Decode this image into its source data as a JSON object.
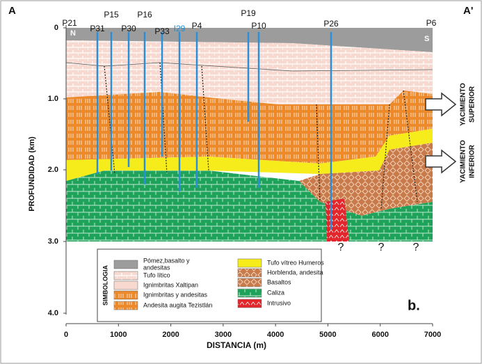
{
  "panel_label": "A",
  "panel_label_end": "A'",
  "subfigure": "b.",
  "orientation": [
    "N",
    "S"
  ],
  "y_axis": {
    "title": "PROFUNDIDAD (km)",
    "ticks": [
      "0",
      "1.0",
      "2.0",
      "3.0",
      "4.0"
    ]
  },
  "x_axis": {
    "title": "DISTANCIA (m)",
    "ticks": [
      "0",
      "1000",
      "2000",
      "3000",
      "4000",
      "5000",
      "6000",
      "7000"
    ]
  },
  "wells": [
    {
      "label": "P21",
      "color": "#111"
    },
    {
      "label": "P31",
      "color": "#111"
    },
    {
      "label": "P15",
      "color": "#111"
    },
    {
      "label": "P30",
      "color": "#111"
    },
    {
      "label": "P16",
      "color": "#111"
    },
    {
      "label": "P33",
      "color": "#111"
    },
    {
      "label": "I29",
      "color": "#1a8fd6"
    },
    {
      "label": "P4",
      "color": "#111"
    },
    {
      "label": "P19",
      "color": "#111"
    },
    {
      "label": "P10",
      "color": "#111"
    },
    {
      "label": "P26",
      "color": "#111"
    },
    {
      "label": "P6",
      "color": "#111"
    }
  ],
  "unknowns": [
    "?",
    "?",
    "?"
  ],
  "zones": [
    {
      "lines": [
        "YACIMIENTO",
        "SUPERIOR"
      ]
    },
    {
      "lines": [
        "YACIMIENTO",
        "INFERIOR"
      ]
    }
  ],
  "legend": {
    "title": "SIMBOLOGIA",
    "items": [
      {
        "lines": [
          "Pómez,basalto y",
          "andesitas"
        ]
      },
      {
        "lines": [
          "Tufo lítico"
        ]
      },
      {
        "lines": [
          "Ignimbritas Xaltipan"
        ]
      },
      {
        "lines": [
          "Ignimbritas y andesitas"
        ]
      },
      {
        "lines": [
          "Andesita augita Tezistlán"
        ]
      },
      {
        "lines": [
          "Tufo vítreo Humeros"
        ]
      },
      {
        "lines": [
          "Horblenda, andesita"
        ]
      },
      {
        "lines": [
          "Basaltos"
        ]
      },
      {
        "lines": [
          "Caliza"
        ]
      },
      {
        "lines": [
          "Intrusivo"
        ]
      }
    ]
  }
}
